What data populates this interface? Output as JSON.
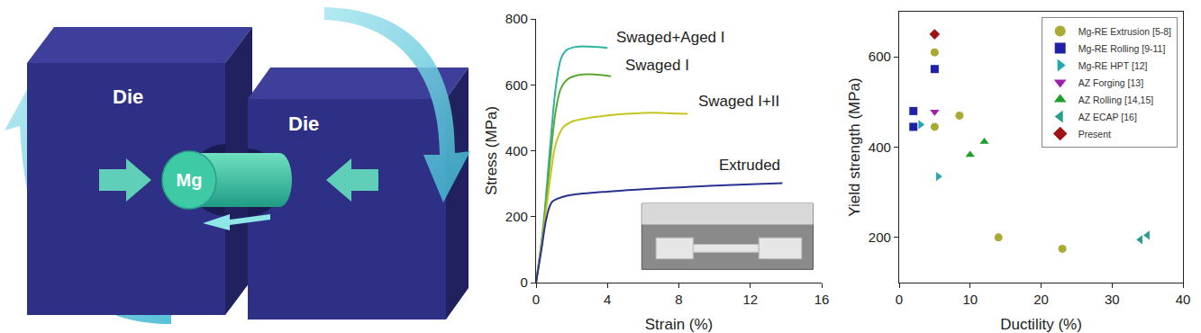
{
  "diagram": {
    "die_left": "Die",
    "die_right": "Die",
    "rod": "Mg"
  },
  "chart_data": [
    {
      "type": "line",
      "x_label": "Strain (%)",
      "y_label": "Stress (MPa)",
      "xlim": [
        0,
        16
      ],
      "xticks": [
        0,
        4,
        8,
        12,
        16
      ],
      "ylim": [
        0,
        800
      ],
      "yticks": [
        0,
        200,
        400,
        600,
        800
      ],
      "grid": false,
      "series": [
        {
          "name": "Swaged+Aged I",
          "color": "#2bb3a3",
          "x": [
            0,
            0.4,
            0.8,
            1.1,
            1.4,
            1.7,
            2.2,
            3,
            3.6,
            4
          ],
          "values": [
            0,
            170,
            420,
            590,
            680,
            705,
            715,
            716,
            714,
            712
          ]
        },
        {
          "name": "Swaged I",
          "color": "#5aa832",
          "x": [
            0,
            0.4,
            0.8,
            1.1,
            1.4,
            1.8,
            2.4,
            3,
            3.6,
            4.2
          ],
          "values": [
            0,
            160,
            380,
            520,
            590,
            618,
            630,
            632,
            630,
            626
          ]
        },
        {
          "name": "Swaged I+II",
          "color": "#c6c41e",
          "x": [
            0,
            0.4,
            0.8,
            1.1,
            1.5,
            2,
            3,
            4,
            5,
            6,
            7,
            8.5
          ],
          "values": [
            0,
            150,
            320,
            420,
            470,
            488,
            500,
            507,
            512,
            515,
            515,
            512
          ]
        },
        {
          "name": "Extruded",
          "color": "#2b3190",
          "x": [
            0,
            0.3,
            0.6,
            0.9,
            1.5,
            2,
            4,
            6,
            8,
            10,
            12,
            13.8
          ],
          "values": [
            0,
            100,
            200,
            245,
            260,
            266,
            276,
            283,
            289,
            294,
            298,
            302
          ]
        }
      ]
    },
    {
      "type": "scatter",
      "x_label": "Ductility (%)",
      "y_label": "Yield strength (MPa)",
      "xlim": [
        0,
        40
      ],
      "xticks": [
        0,
        10,
        20,
        30,
        40
      ],
      "ylim": [
        100,
        700
      ],
      "yticks": [
        200,
        400,
        600
      ],
      "grid": false,
      "legend": "top right",
      "series": [
        {
          "name": "Mg-RE Extrusion [5-8]",
          "color": "#a9a934",
          "marker": "circle",
          "x": [
            5,
            5,
            8.5,
            14,
            23
          ],
          "values": [
            610,
            445,
            470,
            200,
            175
          ]
        },
        {
          "name": "Mg-RE Rolling [9-11]",
          "color": "#1f22a8",
          "marker": "square",
          "x": [
            2,
            2,
            5
          ],
          "values": [
            480,
            445,
            573
          ]
        },
        {
          "name": "Mg-RE HPT [12]",
          "color": "#1fa8b0",
          "marker": "triangle-right",
          "x": [
            3,
            5.5
          ],
          "values": [
            450,
            335
          ]
        },
        {
          "name": "AZ Forging [13]",
          "color": "#9e1fa8",
          "marker": "triangle-down",
          "x": [
            5
          ],
          "values": [
            478
          ]
        },
        {
          "name": "AZ Rolling [14,15]",
          "color": "#1f9e2a",
          "marker": "triangle-up",
          "x": [
            10,
            12
          ],
          "values": [
            383,
            412
          ]
        },
        {
          "name": "AZ ECAP [16]",
          "color": "#2a9e8c",
          "marker": "triangle-left",
          "x": [
            34,
            35
          ],
          "values": [
            195,
            205
          ]
        },
        {
          "name": "Present",
          "color": "#9e1414",
          "marker": "diamond",
          "x": [
            5
          ],
          "values": [
            650
          ]
        }
      ]
    }
  ]
}
